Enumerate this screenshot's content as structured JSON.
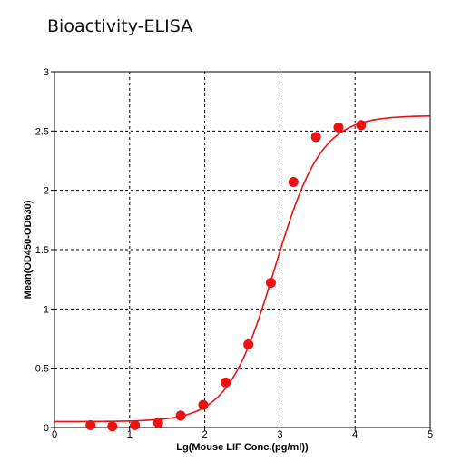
{
  "chart_data": {
    "type": "scatter",
    "title": "Bioactivity-ELISA",
    "xlabel": "Lg(Mouse LIF Conc.(pg/ml))",
    "ylabel": "Mean(OD450-OD630)",
    "xlim": [
      0,
      5
    ],
    "ylim": [
      0,
      3
    ],
    "x_ticks": [
      0,
      1,
      2,
      3,
      4,
      5
    ],
    "y_ticks": [
      0,
      0.5,
      1,
      1.5,
      2,
      2.5,
      3
    ],
    "grid": true,
    "legend": "none",
    "point_color": "#ee1111",
    "curve_color": "#ee1111",
    "fit": {
      "model": "4-parameter logistic",
      "bottom": 0.05,
      "top": 2.63,
      "log_ec50": 2.93,
      "hill_slope": 1.4
    },
    "series": [
      {
        "x": [
          0.48,
          0.77,
          1.07,
          1.38,
          1.68,
          1.98,
          2.28,
          2.58,
          2.88,
          3.18,
          3.48,
          3.78,
          4.08
        ],
        "y": [
          0.02,
          0.01,
          0.02,
          0.04,
          0.1,
          0.19,
          0.38,
          0.7,
          1.22,
          2.07,
          2.45,
          2.53,
          2.55
        ]
      }
    ]
  }
}
